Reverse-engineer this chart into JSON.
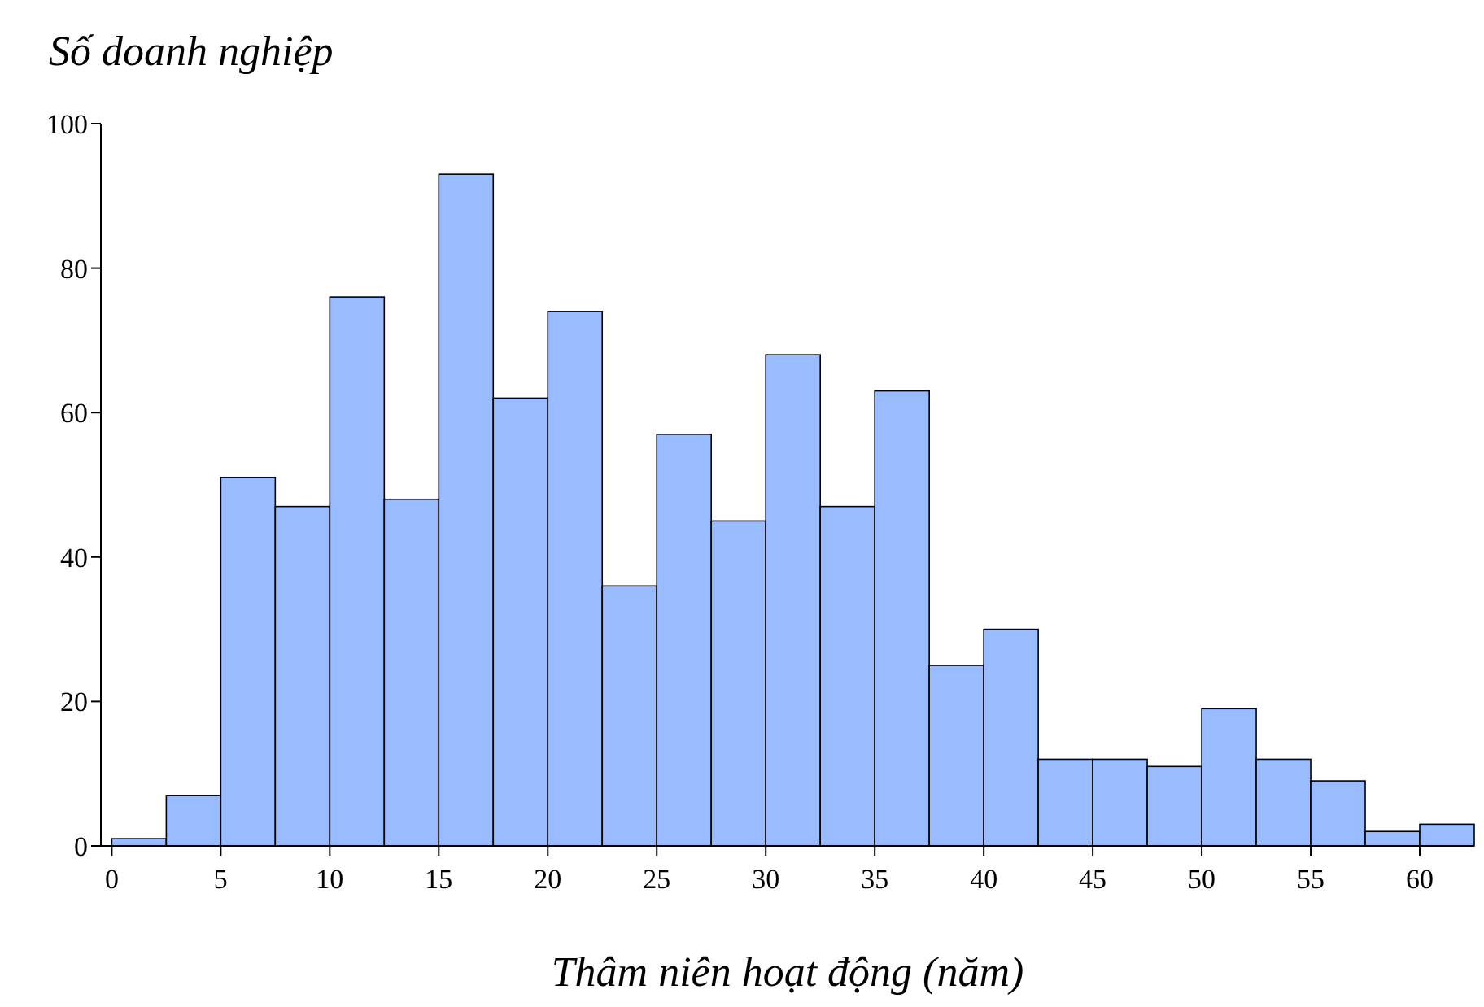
{
  "chart_data": {
    "type": "histogram",
    "title": "Số doanh nghiệp",
    "xlabel": "Thâm niên hoạt động (năm)",
    "bins": [
      0,
      2.5,
      5,
      7.5,
      10,
      12.5,
      15,
      17.5,
      20,
      22.5,
      25,
      27.5,
      30,
      32.5,
      35,
      37.5,
      40,
      42.5,
      45,
      47.5,
      50,
      52.5,
      55,
      57.5,
      60,
      62.5
    ],
    "values": [
      1,
      7,
      51,
      47,
      76,
      48,
      93,
      62,
      74,
      36,
      57,
      45,
      68,
      47,
      63,
      25,
      30,
      12,
      12,
      11,
      19,
      12,
      9,
      2,
      3
    ],
    "color": "#99bbff",
    "xlim": [
      -0.5,
      62.5
    ],
    "ylim": [
      0,
      100
    ],
    "xticks": [
      0,
      5,
      10,
      15,
      20,
      25,
      30,
      35,
      40,
      45,
      50,
      55,
      60
    ],
    "yticks": [
      0,
      20,
      40,
      60,
      80,
      100
    ],
    "grid": false
  }
}
